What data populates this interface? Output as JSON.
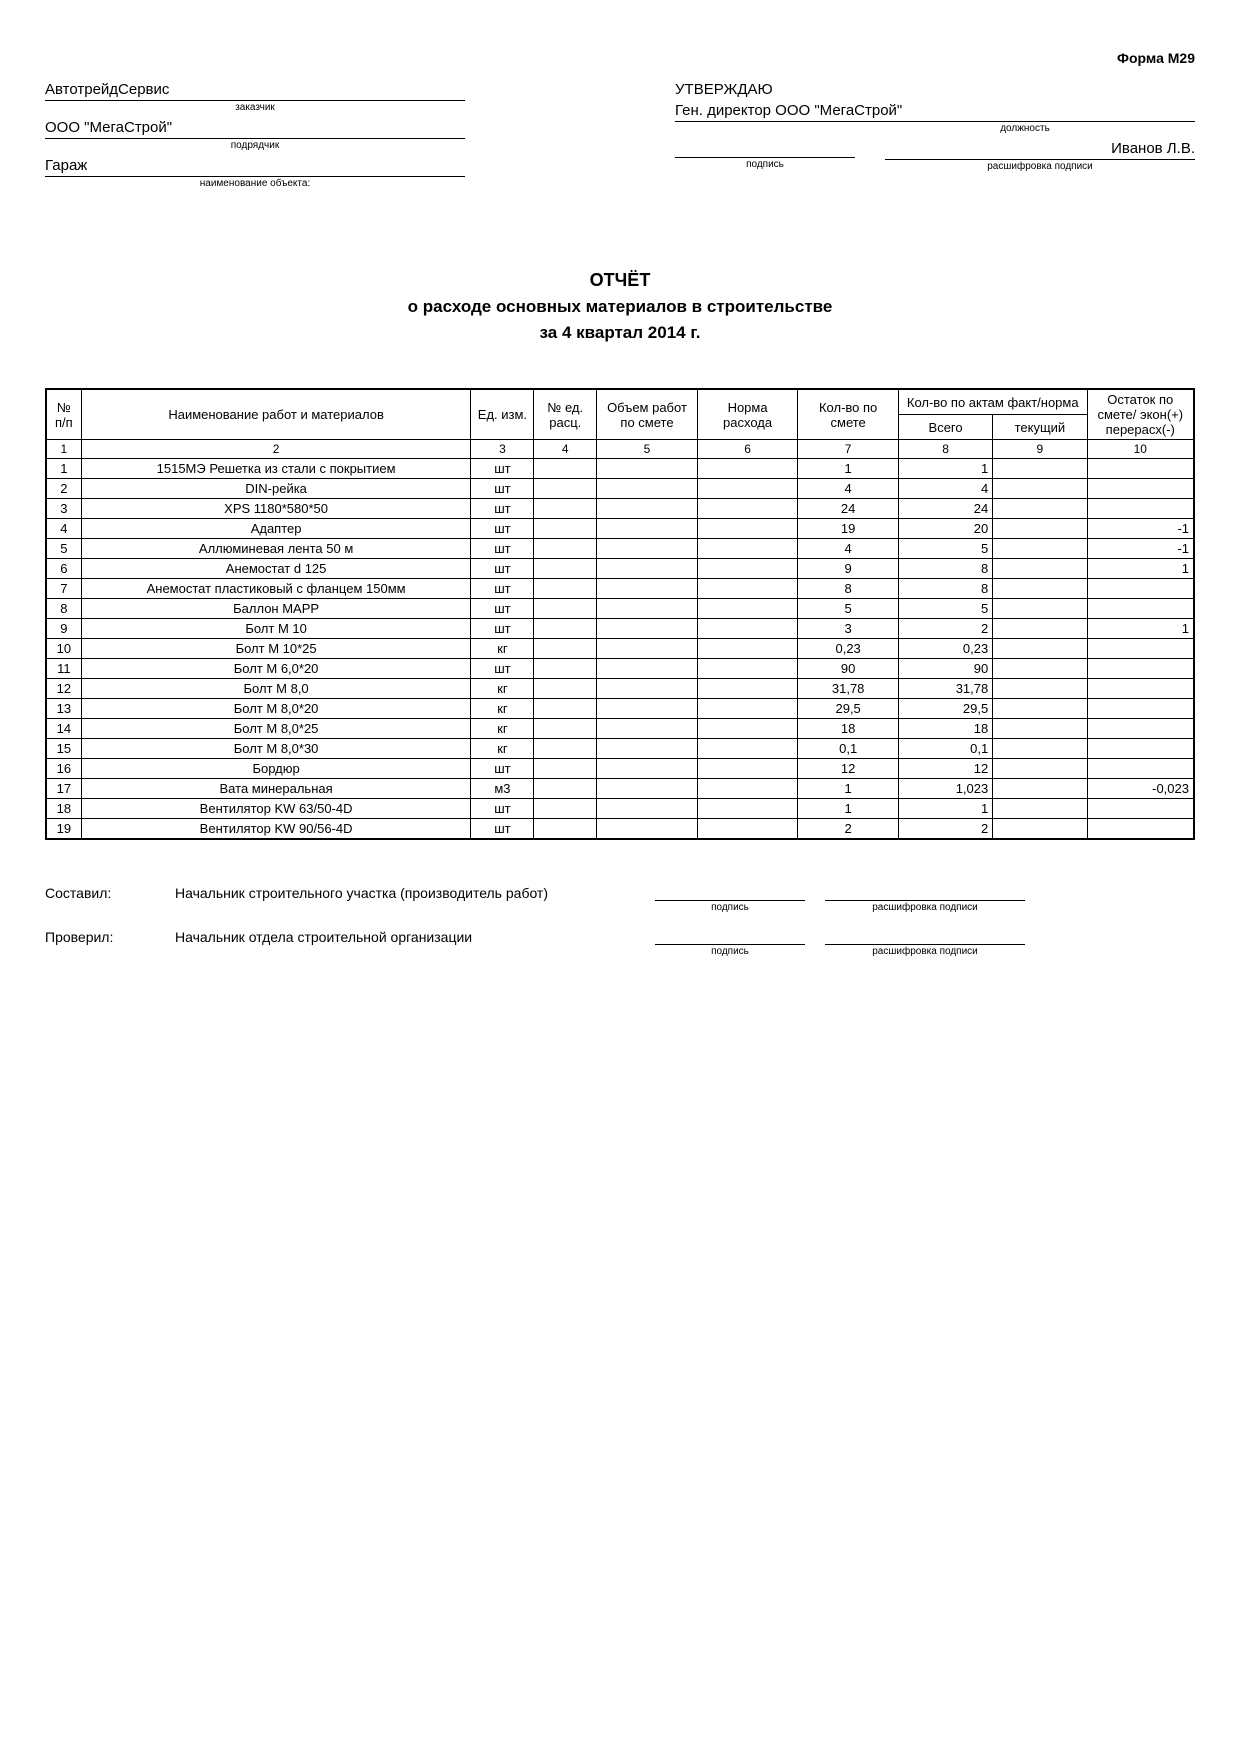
{
  "form_id": "Форма М29",
  "customer": {
    "value": "АвтотрейдСервис",
    "caption": "заказчик"
  },
  "contractor": {
    "value": "ООО \"МегаСтрой\"",
    "caption": "подрядчик"
  },
  "object": {
    "value": "Гараж",
    "caption": "наименование объекта:"
  },
  "approval": {
    "label": "УТВЕРЖДАЮ",
    "position": "Ген. директор ООО \"МегаСтрой\"",
    "position_caption": "должность",
    "name": "Иванов Л.В.",
    "sig_caption": "подпись",
    "name_caption": "расшифровка подписи"
  },
  "title": {
    "line1": "ОТЧЁТ",
    "line2": "о расходе основных материалов в строительстве",
    "line3": "за 4 квартал 2014 г."
  },
  "table": {
    "headers": {
      "num": "№ п/п",
      "name": "Наименование работ и материалов",
      "unit": "Ед. изм.",
      "calc_num": "№ ед. расц.",
      "volume": "Объем работ по смете",
      "norm": "Норма расхода",
      "qty_plan": "Кол-во по смете",
      "qty_act": "Кол-во по актам факт/норма",
      "total": "Всего",
      "current": "текущий",
      "remainder": "Остаток по смете/ экон(+) перерасх(-)"
    },
    "col_numbers": [
      "1",
      "2",
      "3",
      "4",
      "5",
      "6",
      "7",
      "8",
      "9",
      "10"
    ],
    "rows": [
      {
        "n": "1",
        "name": "1515МЭ Решетка из стали с покрытием",
        "unit": "шт",
        "qty": "1",
        "total": "1",
        "rem": ""
      },
      {
        "n": "2",
        "name": "DIN-рейка",
        "unit": "шт",
        "qty": "4",
        "total": "4",
        "rem": ""
      },
      {
        "n": "3",
        "name": "XPS 1180*580*50",
        "unit": "шт",
        "qty": "24",
        "total": "24",
        "rem": ""
      },
      {
        "n": "4",
        "name": "Адаптер",
        "unit": "шт",
        "qty": "19",
        "total": "20",
        "rem": "-1"
      },
      {
        "n": "5",
        "name": "Аллюминевая лента 50 м",
        "unit": "шт",
        "qty": "4",
        "total": "5",
        "rem": "-1"
      },
      {
        "n": "6",
        "name": "Анемостат d 125",
        "unit": "шт",
        "qty": "9",
        "total": "8",
        "rem": "1"
      },
      {
        "n": "7",
        "name": "Анемостат пластиковый с фланцем 150мм",
        "unit": "шт",
        "qty": "8",
        "total": "8",
        "rem": ""
      },
      {
        "n": "8",
        "name": "Баллон МАРР",
        "unit": "шт",
        "qty": "5",
        "total": "5",
        "rem": ""
      },
      {
        "n": "9",
        "name": "Болт М 10",
        "unit": "шт",
        "qty": "3",
        "total": "2",
        "rem": "1"
      },
      {
        "n": "10",
        "name": "Болт М 10*25",
        "unit": "кг",
        "qty": "0,23",
        "total": "0,23",
        "rem": ""
      },
      {
        "n": "11",
        "name": "Болт М 6,0*20",
        "unit": "шт",
        "qty": "90",
        "total": "90",
        "rem": ""
      },
      {
        "n": "12",
        "name": "Болт М 8,0",
        "unit": "кг",
        "qty": "31,78",
        "total": "31,78",
        "rem": ""
      },
      {
        "n": "13",
        "name": "Болт М 8,0*20",
        "unit": "кг",
        "qty": "29,5",
        "total": "29,5",
        "rem": ""
      },
      {
        "n": "14",
        "name": "Болт М 8,0*25",
        "unit": "кг",
        "qty": "18",
        "total": "18",
        "rem": ""
      },
      {
        "n": "15",
        "name": "Болт М 8,0*30",
        "unit": "кг",
        "qty": "0,1",
        "total": "0,1",
        "rem": ""
      },
      {
        "n": "16",
        "name": "Бордюр",
        "unit": "шт",
        "qty": "12",
        "total": "12",
        "rem": ""
      },
      {
        "n": "17",
        "name": "Вата минеральная",
        "unit": "м3",
        "qty": "1",
        "total": "1,023",
        "rem": "-0,023"
      },
      {
        "n": "18",
        "name": "Вентилятор KW 63/50-4D",
        "unit": "шт",
        "qty": "1",
        "total": "1",
        "rem": ""
      },
      {
        "n": "19",
        "name": "Вентилятор KW 90/56-4D",
        "unit": "шт",
        "qty": "2",
        "total": "2",
        "rem": ""
      }
    ]
  },
  "footer": {
    "compiled_label": "Составил:",
    "compiled_role": "Начальник строительного участка (производитель работ)",
    "checked_label": "Проверил:",
    "checked_role": "Начальник отдела строительной организации",
    "sig_caption": "подпись",
    "name_caption": "расшифровка подписи"
  }
}
